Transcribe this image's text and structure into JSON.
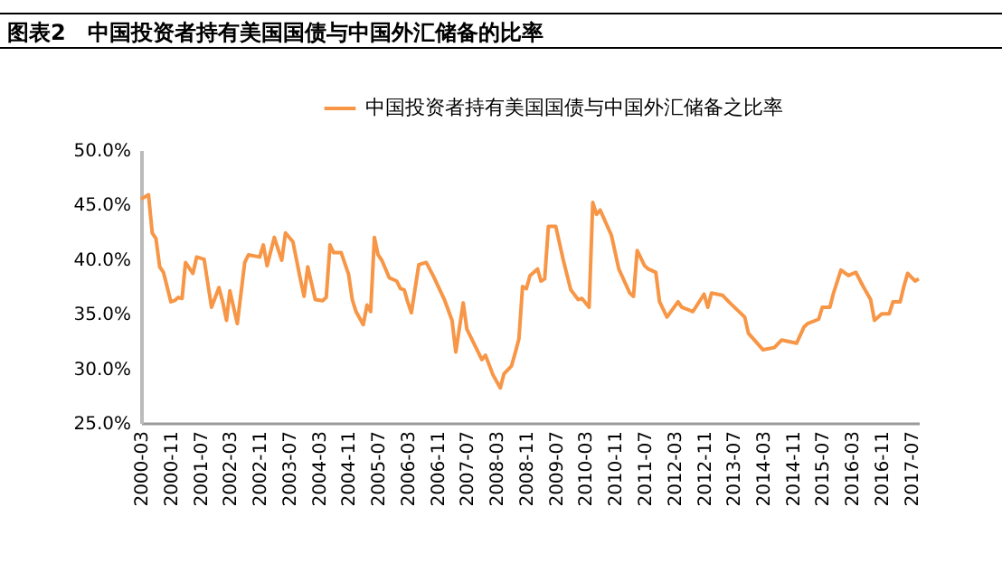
{
  "chart_data": {
    "type": "line",
    "title": "图表2　中国投资者持有美国国债与中国外汇储备的比率",
    "x": [
      "2000-03",
      "2000-05",
      "2000-06",
      "2000-07",
      "2000-08",
      "2000-09",
      "2000-11",
      "2000-12",
      "2001-01",
      "2001-02",
      "2001-03",
      "2001-05",
      "2001-06",
      "2001-08",
      "2001-10",
      "2001-12",
      "2002-01",
      "2002-02",
      "2002-03",
      "2002-05",
      "2002-07",
      "2002-08",
      "2002-11",
      "2002-12",
      "2003-01",
      "2003-03",
      "2003-05",
      "2003-06",
      "2003-08",
      "2003-10",
      "2003-11",
      "2003-12",
      "2004-02",
      "2004-04",
      "2004-05",
      "2004-06",
      "2004-07",
      "2004-09",
      "2004-11",
      "2004-12",
      "2005-01",
      "2005-03",
      "2005-04",
      "2005-05",
      "2005-06",
      "2005-07",
      "2005-08",
      "2005-10",
      "2005-12",
      "2006-01",
      "2006-02",
      "2006-03",
      "2006-04",
      "2006-06",
      "2006-08",
      "2006-10",
      "2007-01",
      "2007-03",
      "2007-04",
      "2007-06",
      "2007-07",
      "2007-09",
      "2007-11",
      "2007-12",
      "2008-02",
      "2008-04",
      "2008-05",
      "2008-07",
      "2008-08",
      "2008-09",
      "2008-10",
      "2008-11",
      "2008-12",
      "2009-02",
      "2009-03",
      "2009-04",
      "2009-05",
      "2009-07",
      "2009-09",
      "2009-11",
      "2010-01",
      "2010-02",
      "2010-04",
      "2010-05",
      "2010-06",
      "2010-07",
      "2010-10",
      "2010-12",
      "2011-03",
      "2011-04",
      "2011-05",
      "2011-07",
      "2011-08",
      "2011-10",
      "2011-11",
      "2012-01",
      "2012-04",
      "2012-05",
      "2012-08",
      "2012-11",
      "2012-12",
      "2013-01",
      "2013-04",
      "2013-06",
      "2013-10",
      "2013-11",
      "2014-03",
      "2014-06",
      "2014-08",
      "2014-12",
      "2015-02",
      "2015-03",
      "2015-06",
      "2015-07",
      "2015-09",
      "2015-10",
      "2015-12",
      "2016-02",
      "2016-04",
      "2016-06",
      "2016-08",
      "2016-09",
      "2016-11",
      "2017-01",
      "2017-02",
      "2017-04",
      "2017-05",
      "2017-06",
      "2017-08",
      "2017-09"
    ],
    "series": [
      {
        "name": "中国投资者持有美国国债与中国外汇储备之比率",
        "color": "#f79646",
        "values": [
          45.5,
          45.9,
          42.4,
          41.9,
          39.3,
          38.8,
          36.1,
          36.2,
          36.5,
          36.4,
          39.7,
          38.7,
          40.2,
          40.0,
          35.6,
          37.4,
          36.1,
          34.4,
          37.1,
          34.1,
          39.7,
          40.4,
          40.2,
          41.3,
          39.4,
          42.0,
          39.9,
          42.4,
          41.6,
          38.2,
          36.6,
          39.3,
          36.3,
          36.2,
          36.5,
          41.3,
          40.6,
          40.6,
          38.6,
          36.3,
          35.2,
          34.0,
          35.8,
          35.2,
          42.0,
          40.4,
          39.9,
          38.3,
          38.0,
          37.3,
          37.2,
          36.1,
          35.1,
          39.5,
          39.7,
          38.4,
          36.2,
          34.4,
          31.5,
          36.0,
          33.6,
          32.2,
          30.8,
          31.2,
          29.4,
          28.2,
          29.5,
          30.2,
          31.4,
          32.7,
          37.5,
          37.3,
          38.5,
          39.1,
          38.0,
          38.2,
          43.0,
          43.0,
          39.9,
          37.2,
          36.3,
          36.4,
          35.6,
          45.2,
          44.1,
          44.5,
          42.2,
          39.1,
          36.9,
          36.6,
          40.8,
          39.4,
          39.1,
          38.8,
          36.1,
          34.7,
          36.1,
          35.6,
          35.2,
          36.8,
          35.6,
          36.9,
          36.7,
          36.0,
          34.7,
          33.2,
          31.7,
          31.9,
          32.6,
          32.3,
          33.8,
          34.1,
          34.5,
          35.6,
          35.6,
          36.9,
          39.0,
          38.5,
          38.8,
          37.5,
          36.3,
          34.4,
          35.0,
          35.0,
          36.1,
          36.1,
          37.5,
          38.7,
          38.0,
          38.2
        ]
      }
    ],
    "xlim": [
      "2000-03",
      "2017-09"
    ],
    "xticks": [
      "2000-03",
      "2000-11",
      "2001-07",
      "2002-03",
      "2002-11",
      "2003-07",
      "2004-03",
      "2004-11",
      "2005-07",
      "2006-03",
      "2006-11",
      "2007-07",
      "2008-03",
      "2008-11",
      "2009-07",
      "2010-03",
      "2010-11",
      "2011-07",
      "2012-03",
      "2012-11",
      "2013-07",
      "2014-03",
      "2014-11",
      "2015-07",
      "2016-03",
      "2016-11",
      "2017-07"
    ],
    "ylim": [
      25,
      50
    ],
    "yticks": [
      {
        "value": 25,
        "label": "25.0%"
      },
      {
        "value": 30,
        "label": "30.0%"
      },
      {
        "value": 35,
        "label": "35.0%"
      },
      {
        "value": 40,
        "label": "40.0%"
      },
      {
        "value": 45,
        "label": "45.0%"
      },
      {
        "value": 50,
        "label": "50.0%"
      }
    ],
    "grid": false,
    "legend": "top",
    "line_style": "solid"
  }
}
